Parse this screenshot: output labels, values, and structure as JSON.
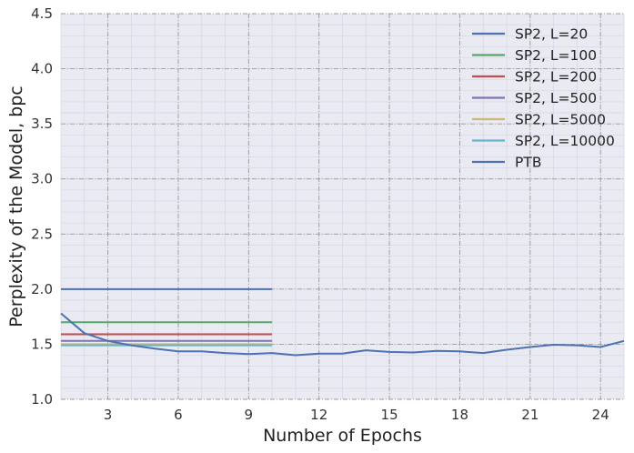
{
  "chart_data": {
    "type": "line",
    "title": "",
    "xlabel": "Number of Epochs",
    "ylabel": "Perplexity of the Model, bpc",
    "xlim": [
      1,
      25
    ],
    "ylim": [
      1.0,
      4.5
    ],
    "xticks": [
      3,
      6,
      9,
      12,
      15,
      18,
      21,
      24
    ],
    "yticks": [
      1.0,
      1.5,
      2.0,
      2.5,
      3.0,
      3.5,
      4.0,
      4.5
    ],
    "x_tick_labels": [
      "3",
      "6",
      "9",
      "12",
      "15",
      "18",
      "21",
      "24"
    ],
    "y_tick_labels": [
      "1.0",
      "1.5",
      "2.0",
      "2.5",
      "3.0",
      "3.5",
      "4.0",
      "4.5"
    ],
    "grid": true,
    "legend_position": "top-right",
    "series": [
      {
        "name": "SP2, L=20",
        "color": "#4c72b0",
        "x": [
          1,
          10
        ],
        "y": [
          2.0,
          2.0
        ]
      },
      {
        "name": "SP2, L=100",
        "color": "#55a868",
        "x": [
          1,
          10
        ],
        "y": [
          1.7,
          1.7
        ]
      },
      {
        "name": "SP2, L=200",
        "color": "#c44e52",
        "x": [
          1,
          10
        ],
        "y": [
          1.59,
          1.59
        ]
      },
      {
        "name": "SP2, L=500",
        "color": "#8172b2",
        "x": [
          1,
          10
        ],
        "y": [
          1.53,
          1.53
        ]
      },
      {
        "name": "SP2, L=5000",
        "color": "#ccb974",
        "x": [
          1,
          10
        ],
        "y": [
          1.5,
          1.5
        ]
      },
      {
        "name": "SP2, L=10000",
        "color": "#64b5cd",
        "x": [
          1,
          10
        ],
        "y": [
          1.49,
          1.49
        ]
      },
      {
        "name": "PTB",
        "color": "#4c72b0",
        "x": [
          1,
          2,
          3,
          4,
          5,
          6,
          7,
          8,
          9,
          10,
          11,
          12,
          13,
          14,
          15,
          16,
          17,
          18,
          19,
          20,
          21,
          22,
          23,
          24,
          25
        ],
        "y": [
          1.78,
          1.6,
          1.53,
          1.49,
          1.46,
          1.435,
          1.435,
          1.42,
          1.41,
          1.42,
          1.4,
          1.415,
          1.415,
          1.445,
          1.43,
          1.425,
          1.44,
          1.435,
          1.42,
          1.45,
          1.475,
          1.495,
          1.49,
          1.475,
          1.53
        ]
      }
    ]
  }
}
